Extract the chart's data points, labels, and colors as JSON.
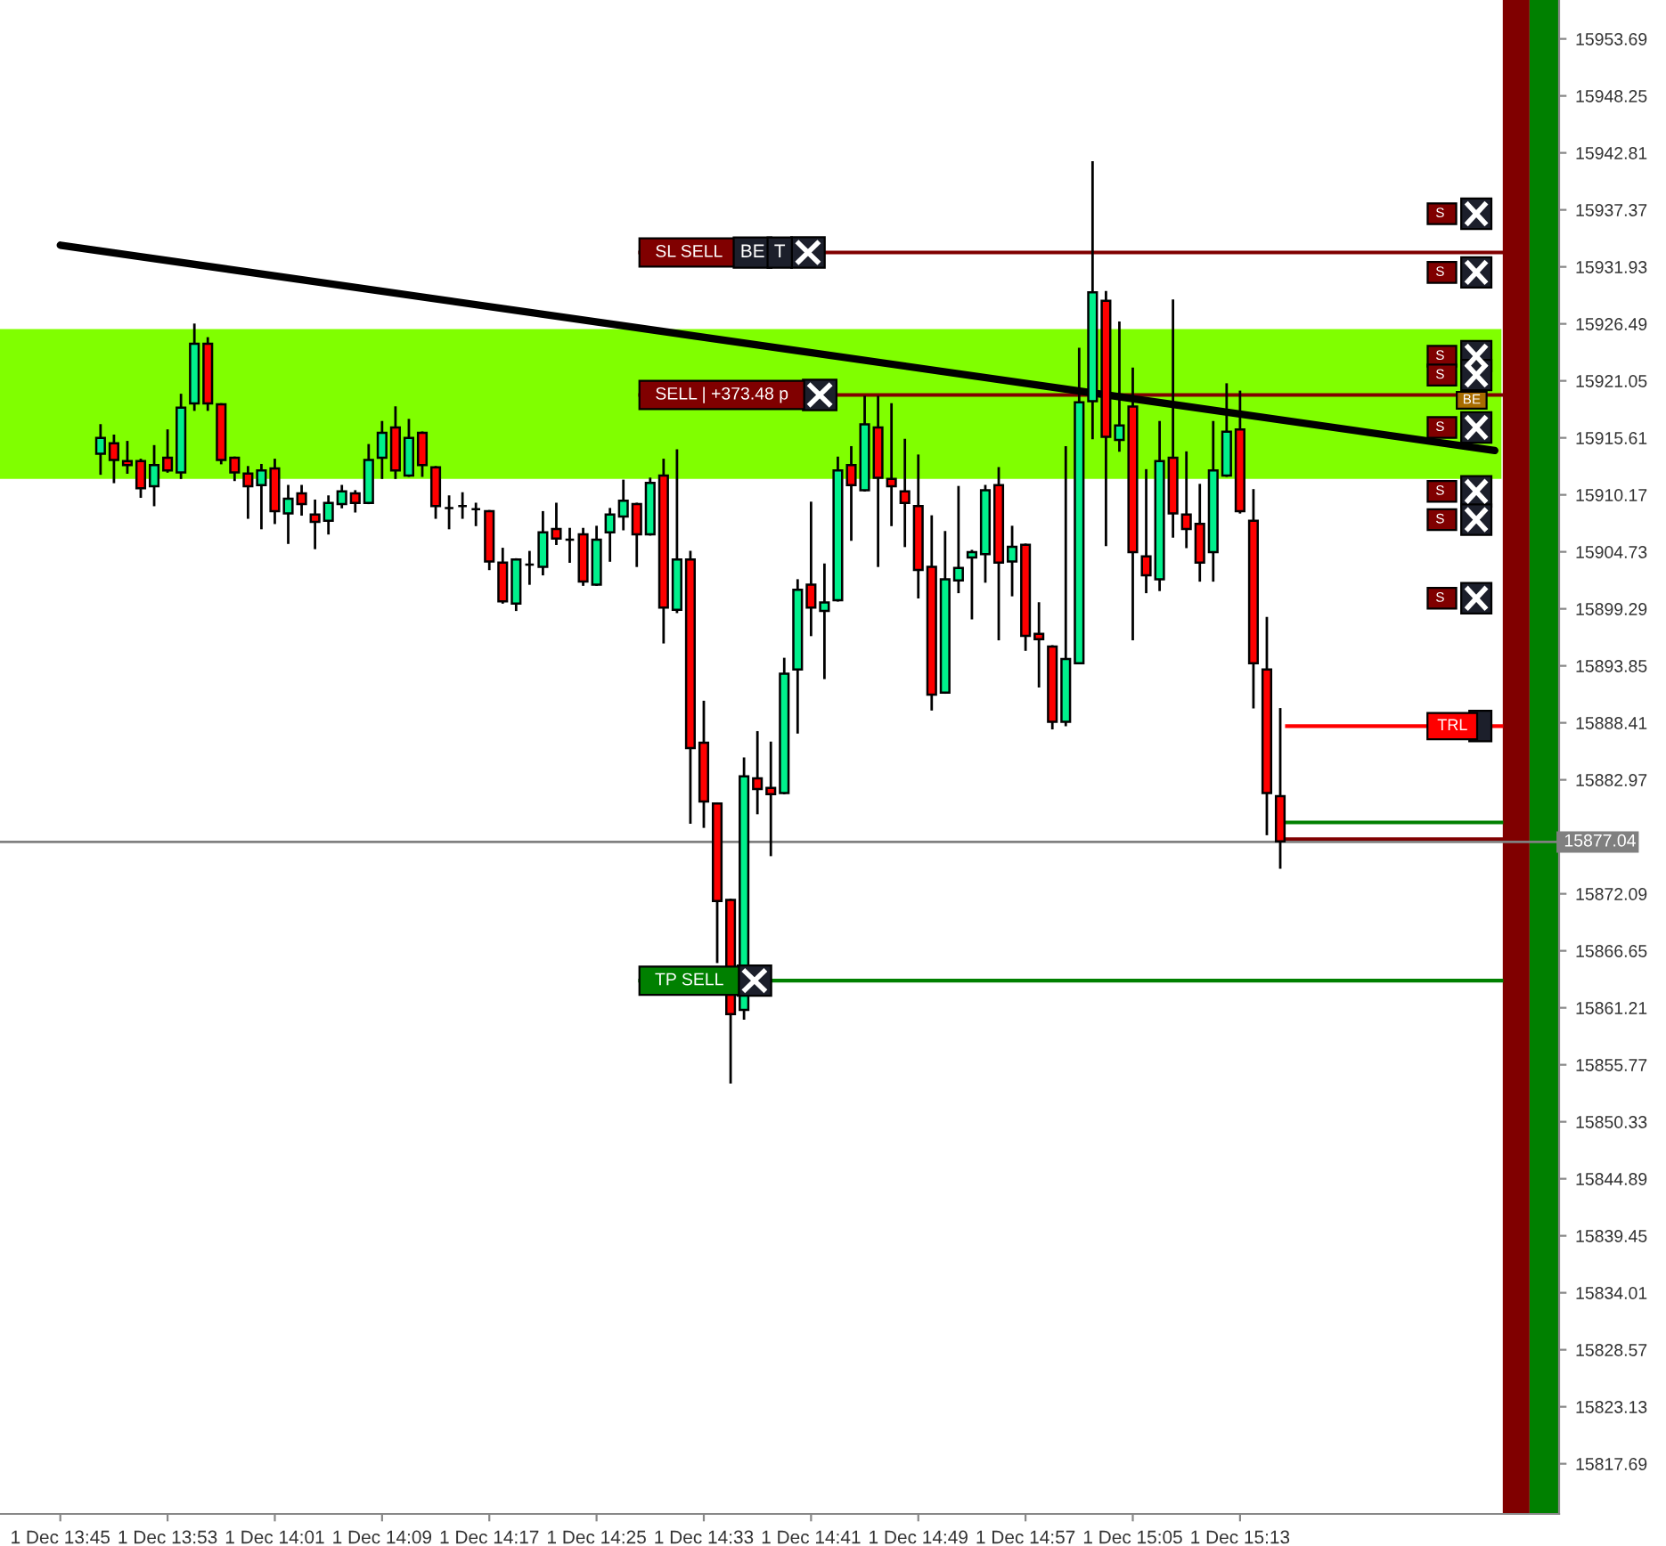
{
  "chart_data": {
    "type": "candlestick",
    "categories": [
      "1 Dec 13:45",
      null,
      null,
      null,
      null,
      null,
      null,
      null,
      "1 Dec 13:53",
      null,
      null,
      null,
      null,
      null,
      null,
      null,
      "1 Dec 14:01",
      null,
      null,
      null,
      null,
      null,
      null,
      null,
      "1 Dec 14:09",
      null,
      null,
      null,
      null,
      null,
      null,
      null,
      "1 Dec 14:17",
      null,
      null,
      null,
      null,
      null,
      null,
      null,
      "1 Dec 14:25",
      null,
      null,
      null,
      null,
      null,
      null,
      null,
      "1 Dec 14:33",
      null,
      null,
      null,
      null,
      null,
      null,
      null,
      "1 Dec 14:41",
      null,
      null,
      null,
      null,
      null,
      null,
      null,
      "1 Dec 14:49",
      null,
      null,
      null,
      null,
      null,
      null,
      null,
      "1 Dec 14:57",
      null,
      null,
      null,
      null,
      null,
      null,
      null,
      "1 Dec 15:05",
      null,
      null,
      null,
      null,
      null,
      null,
      null,
      "1 Dec 15:13",
      null,
      null,
      null,
      null,
      null,
      null,
      null,
      null,
      null,
      null,
      null,
      null,
      null,
      null,
      null,
      null,
      null,
      null,
      null
    ],
    "ohlc": [
      null,
      null,
      null,
      [
        15914.1,
        15916.8,
        15912.2,
        15915.6
      ],
      [
        15915.1,
        15915.8,
        15911.4,
        15913.5
      ],
      [
        15913.4,
        15915.2,
        15912.3,
        15913.0
      ],
      [
        15913.4,
        15913.5,
        15910.0,
        15910.8
      ],
      [
        15911.0,
        15914.8,
        15909.2,
        15913.0
      ],
      [
        15913.7,
        15916.3,
        15912.4,
        15912.5
      ],
      [
        15912.3,
        15919.7,
        15911.8,
        15918.5
      ],
      [
        15918.9,
        15926.4,
        15918.3,
        15924.6
      ],
      [
        15924.6,
        15925.1,
        15918.3,
        15918.9
      ],
      [
        15918.8,
        15918.8,
        15913.2,
        15913.5
      ],
      [
        15913.7,
        15913.7,
        15911.6,
        15912.3
      ],
      [
        15912.2,
        15912.8,
        15908.0,
        15911.0
      ],
      [
        15911.1,
        15913.0,
        15907.0,
        15912.5
      ],
      [
        15912.7,
        15913.5,
        15907.5,
        15908.6
      ],
      [
        15908.4,
        15911.0,
        15905.6,
        15909.8
      ],
      [
        15910.3,
        15911.0,
        15908.3,
        15909.3
      ],
      [
        15908.3,
        15909.6,
        15905.1,
        15907.6
      ],
      [
        15907.7,
        15910.0,
        15906.5,
        15909.4
      ],
      [
        15909.3,
        15911.0,
        15909.0,
        15910.5
      ],
      [
        15910.3,
        15910.5,
        15908.6,
        15909.4
      ],
      [
        15909.4,
        15914.9,
        15909.4,
        15913.5
      ],
      [
        15913.7,
        15917.1,
        15911.8,
        15916.1
      ],
      [
        15916.6,
        15918.5,
        15911.8,
        15912.5
      ],
      [
        15912.0,
        15917.3,
        15912.0,
        15915.6
      ],
      [
        15916.1,
        15916.1,
        15912.0,
        15913.0
      ],
      [
        15912.8,
        15912.8,
        15908.0,
        15909.1
      ],
      [
        15908.9,
        15910.0,
        15907.0,
        15908.9
      ],
      [
        15909.1,
        15910.3,
        15908.0,
        15909.1
      ],
      [
        15908.8,
        15909.3,
        15907.3,
        15908.8
      ],
      [
        15908.6,
        15908.6,
        15903.1,
        15903.8
      ],
      [
        15903.7,
        15905.0,
        15899.9,
        15900.0
      ],
      [
        15899.8,
        15904.0,
        15899.2,
        15904.0
      ],
      [
        15903.5,
        15904.7,
        15901.7,
        15903.5
      ],
      [
        15903.3,
        15908.5,
        15902.6,
        15906.6
      ],
      [
        15906.9,
        15909.3,
        15905.5,
        15906.0
      ],
      [
        15905.9,
        15906.9,
        15903.8,
        15905.9
      ],
      [
        15906.4,
        15906.9,
        15901.6,
        15901.9
      ],
      [
        15901.6,
        15907.1,
        15901.6,
        15905.9
      ],
      [
        15906.6,
        15908.8,
        15903.9,
        15908.3
      ],
      [
        15908.1,
        15911.5,
        15906.9,
        15909.6
      ],
      [
        15909.3,
        15909.3,
        15903.4,
        15906.4
      ],
      [
        15906.4,
        15911.7,
        15906.4,
        15911.3
      ],
      [
        15912.0,
        15913.5,
        15896.1,
        15899.4
      ],
      [
        15899.2,
        15914.4,
        15899.0,
        15904.0
      ],
      [
        15904.0,
        15904.7,
        15878.9,
        15886.0
      ],
      [
        15886.5,
        15890.4,
        15878.5,
        15880.9
      ],
      [
        15880.7,
        15880.7,
        15865.6,
        15871.4
      ],
      [
        15871.5,
        15871.5,
        15854.1,
        15860.6
      ],
      [
        15861.0,
        15885.0,
        15860.2,
        15883.3
      ],
      [
        15883.1,
        15887.5,
        15879.8,
        15882.1
      ],
      [
        15882.2,
        15886.5,
        15875.8,
        15881.6
      ],
      [
        15881.7,
        15894.5,
        15881.7,
        15893.1
      ],
      [
        15893.5,
        15902.0,
        15887.5,
        15901.1
      ],
      [
        15901.6,
        15909.4,
        15896.8,
        15899.4
      ],
      [
        15899.1,
        15903.5,
        15892.7,
        15899.9
      ],
      [
        15900.1,
        15913.7,
        15900.1,
        15912.5
      ],
      [
        15913.0,
        15914.7,
        15905.9,
        15911.1
      ],
      [
        15910.6,
        15919.5,
        15910.6,
        15916.9
      ],
      [
        15916.6,
        15919.5,
        15903.4,
        15911.8
      ],
      [
        15911.7,
        15918.8,
        15907.3,
        15911.0
      ],
      [
        15910.5,
        15915.4,
        15905.3,
        15909.4
      ],
      [
        15909.1,
        15913.9,
        15900.4,
        15903.0
      ],
      [
        15903.3,
        15908.1,
        15889.7,
        15891.1
      ],
      [
        15891.3,
        15906.6,
        15891.3,
        15902.1
      ],
      [
        15902.0,
        15910.9,
        15900.9,
        15903.2
      ],
      [
        15904.2,
        15904.8,
        15898.4,
        15904.7
      ],
      [
        15904.5,
        15911.0,
        15901.9,
        15910.6
      ],
      [
        15911.1,
        15912.7,
        15896.4,
        15903.7
      ],
      [
        15903.8,
        15907.1,
        15900.6,
        15905.2
      ],
      [
        15905.4,
        15905.4,
        15895.4,
        15896.7
      ],
      [
        15896.9,
        15899.8,
        15891.9,
        15896.4
      ],
      [
        15895.7,
        15895.7,
        15887.9,
        15888.5
      ],
      [
        15888.5,
        15914.7,
        15888.2,
        15894.5
      ],
      [
        15894.1,
        15924.1,
        15894.1,
        15919.0
      ],
      [
        15919.1,
        15941.9,
        15915.6,
        15929.5
      ],
      [
        15928.7,
        15929.5,
        15905.4,
        15915.7
      ],
      [
        15915.4,
        15926.6,
        15914.4,
        15916.8
      ],
      [
        15918.6,
        15922.2,
        15896.4,
        15904.7
      ],
      [
        15904.3,
        15912.5,
        15900.9,
        15902.5
      ],
      [
        15902.1,
        15917.1,
        15901.1,
        15913.4
      ],
      [
        15913.7,
        15928.7,
        15906.2,
        15908.4
      ],
      [
        15908.3,
        15914.2,
        15905.2,
        15906.9
      ],
      [
        15907.4,
        15911.1,
        15902.0,
        15903.7
      ],
      [
        15904.7,
        15917.1,
        15902.0,
        15912.5
      ],
      [
        15912.0,
        15920.7,
        15912.0,
        15916.2
      ],
      [
        15916.4,
        15920.0,
        15908.5,
        15908.6
      ],
      [
        15907.7,
        15910.6,
        15889.9,
        15894.1
      ],
      [
        15893.5,
        15898.4,
        15877.8,
        15881.7
      ],
      [
        15881.4,
        15889.7,
        15874.6,
        15877.1
      ],
      null,
      null,
      null,
      null,
      null,
      null,
      null,
      null,
      null,
      null,
      null,
      null,
      null,
      null,
      null,
      null
    ],
    "colors": [
      null,
      null,
      null,
      "#00f08c",
      "#ff0000",
      "#ff0000",
      "#ff0000",
      "#00f08c",
      "#ff0000",
      "#00f08c",
      "#00f08c",
      "#ff0000",
      "#ff0000",
      "#ff0000",
      "#ff0000",
      "#00f08c",
      "#ff0000",
      "#00f08c",
      "#ff0000",
      "#ff0000",
      "#00f08c",
      "#00f08c",
      "#ff0000",
      "#00f08c",
      "#00f08c",
      "#ff0000",
      "#00f08c",
      "#ff0000",
      "#ff0000",
      "#000000",
      "#000000",
      "#000000",
      "#ff0000",
      "#ff0000",
      "#00f08c",
      "#000000",
      "#00f08c",
      "#ff0000",
      "#000000",
      "#ff0000",
      "#00f08c",
      "#00f08c",
      "#00f08c",
      "#ff0000",
      "#00f08c",
      "#ff0000",
      "#00f08c",
      "#ff0000",
      "#ff0000",
      "#ff0000",
      "#ff0000",
      "#00f08c",
      "#ff0000",
      "#ff0000",
      "#00f08c",
      "#00f08c",
      "#ff0000",
      "#00f08c",
      "#00f08c",
      "#ff0000",
      "#00f08c",
      "#ff0000",
      "#ff0000",
      "#ff0000",
      "#ff0000",
      "#ff0000",
      "#00f08c",
      "#00f08c",
      "#00f08c",
      "#00f08c",
      "#ff0000",
      "#00f08c",
      "#ff0000",
      "#ff0000",
      "#ff0000",
      "#00f08c",
      "#00f08c",
      "#00f08c",
      "#ff0000",
      "#00f08c",
      "#ff0000",
      "#ff0000",
      "#00f08c",
      "#ff0000",
      "#ff0000",
      "#ff0000",
      "#00f08c",
      "#00f08c",
      "#ff0000",
      "#ff0000",
      "#ff0000",
      "#ff0000",
      null,
      null,
      null,
      null,
      null,
      null,
      null,
      null,
      null,
      null,
      null,
      null,
      null,
      null,
      null,
      null
    ],
    "series": [
      {
        "type": "line",
        "color": "#000000",
        "values": [
          15934.0,
          null,
          null,
          null,
          null,
          null,
          null,
          null,
          null,
          null,
          null,
          null,
          null,
          null,
          null,
          null,
          null,
          null,
          null,
          null,
          null,
          null,
          null,
          null,
          null,
          null,
          null,
          null,
          null,
          null,
          null,
          null,
          null,
          null,
          null,
          null,
          null,
          null,
          null,
          null,
          null,
          null,
          null,
          null,
          null,
          null,
          null,
          null,
          null,
          null,
          null,
          null,
          null,
          null,
          null,
          null,
          null,
          null,
          null,
          null,
          null,
          null,
          null,
          null,
          null,
          null,
          null,
          null,
          null,
          null,
          null,
          null,
          null,
          null,
          null,
          null,
          null,
          null,
          null,
          null,
          null,
          null,
          null,
          null,
          null,
          null,
          null,
          null,
          null,
          null,
          null,
          null,
          null,
          null,
          null,
          null,
          null,
          null,
          null,
          null,
          null,
          null,
          null,
          null,
          null,
          null,
          null,
          15914.4
        ]
      }
    ],
    "ylim": [
      15812.9,
      15957.4
    ],
    "yticks": [
      15953.69,
      15948.25,
      15942.81,
      15937.37,
      15931.93,
      15926.49,
      15921.05,
      15915.61,
      15910.17,
      15904.73,
      15899.29,
      15893.85,
      15888.41,
      15882.97,
      15872.09,
      15866.65,
      15861.21,
      15855.77,
      15850.33,
      15844.89,
      15839.45,
      15834.01,
      15828.57,
      15823.13,
      15817.69
    ],
    "bands": [
      {
        "axis": "y",
        "from": 15911.7,
        "to": 15926.0,
        "color": "#80ff00"
      }
    ],
    "ref_lines": [
      {
        "axis": "y",
        "value": 15933.3,
        "label": "SL SELL",
        "color": "#800000"
      },
      {
        "axis": "y",
        "value": 15919.7,
        "label": "SELL | +373.48 p",
        "color": "#800000"
      },
      {
        "axis": "y",
        "value": 15863.8,
        "label": "TP SELL",
        "color": "#008000"
      },
      {
        "axis": "y",
        "value": 15888.1,
        "label": "TRL",
        "color": "#ff0000"
      },
      {
        "axis": "y",
        "value": 15878.9,
        "color": "#008000"
      },
      {
        "axis": "y",
        "value": 15877.3,
        "color": "#800000"
      },
      {
        "axis": "y",
        "value": 15877.04,
        "label": "15877.04",
        "color": "#808080"
      }
    ],
    "annotations": [
      {
        "text": "S",
        "y": 15937.0
      },
      {
        "text": "S",
        "y": 15931.4
      },
      {
        "text": "S",
        "y": 15923.4
      },
      {
        "text": "S",
        "y": 15921.6
      },
      {
        "text": "BE",
        "y": 15919.2
      },
      {
        "text": "S",
        "y": 15916.6
      },
      {
        "text": "S",
        "y": 15910.5
      },
      {
        "text": "S",
        "y": 15907.8
      },
      {
        "text": "S",
        "y": 15900.3
      },
      {
        "text": "BE",
        "y": 15933.3
      },
      {
        "text": "T",
        "y": 15933.3
      }
    ],
    "grid": false,
    "legend": false
  }
}
